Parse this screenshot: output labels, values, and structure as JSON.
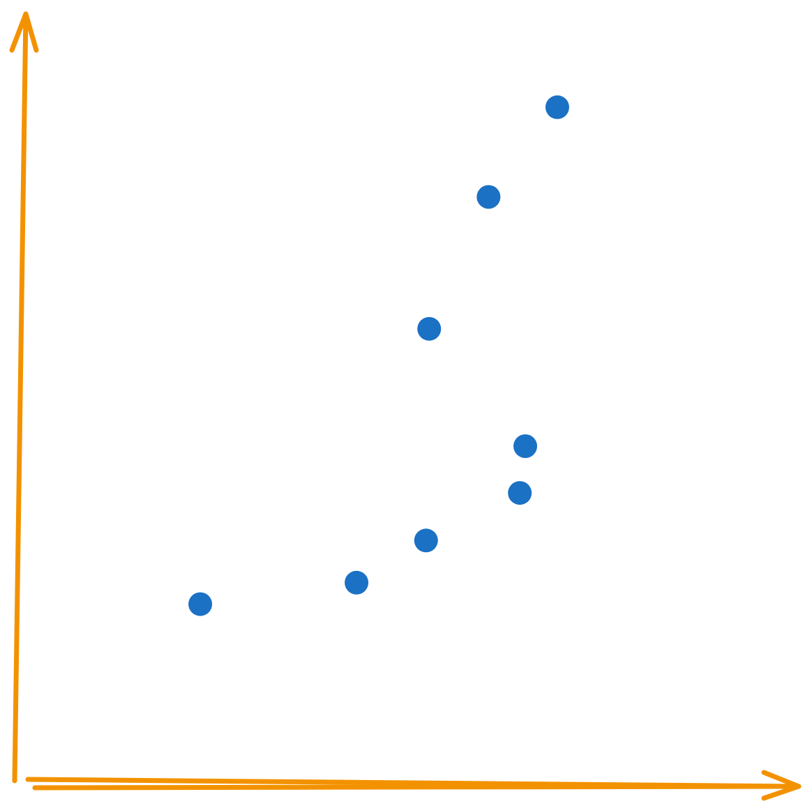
{
  "chart_data": {
    "type": "scatter",
    "title": "",
    "xlabel": "",
    "ylabel": "",
    "xlim": [
      0,
      100
    ],
    "ylim": [
      0,
      100
    ],
    "grid": false,
    "legend": "none",
    "colors": {
      "axis": "#F39200",
      "point": "#1B71C4"
    },
    "series": [
      {
        "x": [
          23.4,
          43.4,
          52.3,
          52.7,
          60.3,
          64.3,
          65.0,
          69.1
        ],
        "y": [
          23.4,
          26.2,
          31.7,
          59.3,
          76.5,
          37.9,
          44.0,
          88.2
        ]
      }
    ]
  }
}
